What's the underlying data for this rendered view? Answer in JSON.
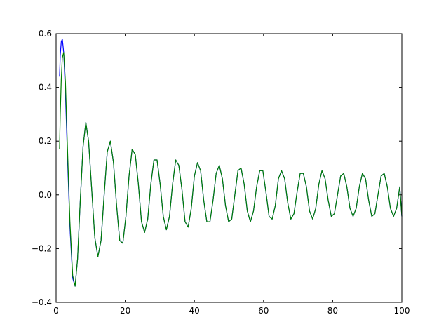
{
  "chart_data": {
    "type": "line",
    "title": "",
    "xlabel": "",
    "ylabel": "",
    "xlim": [
      0,
      100
    ],
    "ylim": [
      -0.4,
      0.6
    ],
    "grid": false,
    "x_ticks": [
      0,
      20,
      40,
      60,
      80,
      100
    ],
    "x_tick_labels": [
      "0",
      "20",
      "40",
      "60",
      "80",
      "100"
    ],
    "y_ticks": [
      -0.4,
      -0.2,
      0.0,
      0.2,
      0.4,
      0.6
    ],
    "y_tick_labels": [
      "−0.4",
      "−0.2",
      "0.0",
      "0.2",
      "0.4",
      "0.6"
    ],
    "series": [
      {
        "color": "#0000ff",
        "x": [
          1.0,
          1.2,
          1.5,
          1.8,
          2.2,
          2.7,
          3.3,
          4.0,
          4.8,
          5.5,
          6.2,
          7.0,
          7.8,
          8.6,
          9.4,
          10.3,
          11.2,
          12.1,
          13.0,
          13.9,
          14.8,
          15.7,
          16.6,
          17.5,
          18.4,
          19.3,
          20.2,
          21.1,
          22.0,
          22.9,
          23.8,
          24.7,
          25.6,
          26.5,
          27.4,
          28.3,
          29.2,
          30.1,
          31.0,
          31.9,
          32.8,
          33.7,
          34.6,
          35.5,
          36.4,
          37.3,
          38.2,
          39.1,
          40.0,
          40.9,
          41.8,
          42.7,
          43.6,
          44.5,
          45.4,
          46.3,
          47.2,
          48.1,
          49.0,
          49.9,
          50.8,
          51.7,
          52.6,
          53.5,
          54.4,
          55.3,
          56.2,
          57.1,
          58.0,
          58.9,
          59.8,
          60.7,
          61.6,
          62.5,
          63.4,
          64.3,
          65.2,
          66.1,
          67.0,
          67.9,
          68.8,
          69.7,
          70.6,
          71.5,
          72.4,
          73.3,
          74.2,
          75.1,
          76.0,
          76.9,
          77.8,
          78.7,
          79.6,
          80.5,
          81.4,
          82.3,
          83.2,
          84.1,
          85.0,
          85.9,
          86.8,
          87.7,
          88.6,
          89.5,
          90.4,
          91.3,
          92.2,
          93.1,
          94.0,
          94.9,
          95.8,
          96.7,
          97.6,
          98.5,
          99.4,
          100.0
        ],
        "y": [
          0.44,
          0.52,
          0.57,
          0.58,
          0.53,
          0.38,
          0.14,
          -0.12,
          -0.31,
          -0.34,
          -0.24,
          -0.02,
          0.18,
          0.27,
          0.2,
          0.02,
          -0.16,
          -0.23,
          -0.17,
          0.0,
          0.16,
          0.2,
          0.12,
          -0.04,
          -0.17,
          -0.18,
          -0.08,
          0.07,
          0.17,
          0.15,
          0.04,
          -0.1,
          -0.14,
          -0.09,
          0.04,
          0.13,
          0.13,
          0.04,
          -0.08,
          -0.13,
          -0.08,
          0.04,
          0.13,
          0.11,
          0.02,
          -0.1,
          -0.12,
          -0.05,
          0.07,
          0.12,
          0.09,
          -0.02,
          -0.1,
          -0.1,
          -0.02,
          0.08,
          0.11,
          0.06,
          -0.04,
          -0.1,
          -0.09,
          0.0,
          0.09,
          0.1,
          0.04,
          -0.06,
          -0.1,
          -0.06,
          0.03,
          0.09,
          0.09,
          0.01,
          -0.08,
          -0.09,
          -0.04,
          0.06,
          0.09,
          0.06,
          -0.03,
          -0.09,
          -0.07,
          0.01,
          0.08,
          0.08,
          0.03,
          -0.06,
          -0.09,
          -0.05,
          0.04,
          0.09,
          0.06,
          -0.02,
          -0.08,
          -0.07,
          0.0,
          0.07,
          0.08,
          0.03,
          -0.05,
          -0.08,
          -0.05,
          0.03,
          0.08,
          0.06,
          -0.02,
          -0.08,
          -0.07,
          0.0,
          0.07,
          0.08,
          0.03,
          -0.05,
          -0.08,
          -0.05,
          0.03,
          -0.08
        ]
      },
      {
        "color": "#007f00",
        "x": [
          1.0,
          1.2,
          1.5,
          1.8,
          2.2,
          2.7,
          3.3,
          4.0,
          4.8,
          5.5,
          6.2,
          7.0,
          7.8,
          8.6,
          9.4,
          10.3,
          11.2,
          12.1,
          13.0,
          13.9,
          14.8,
          15.7,
          16.6,
          17.5,
          18.4,
          19.3,
          20.2,
          21.1,
          22.0,
          22.9,
          23.8,
          24.7,
          25.6,
          26.5,
          27.4,
          28.3,
          29.2,
          30.1,
          31.0,
          31.9,
          32.8,
          33.7,
          34.6,
          35.5,
          36.4,
          37.3,
          38.2,
          39.1,
          40.0,
          40.9,
          41.8,
          42.7,
          43.6,
          44.5,
          45.4,
          46.3,
          47.2,
          48.1,
          49.0,
          49.9,
          50.8,
          51.7,
          52.6,
          53.5,
          54.4,
          55.3,
          56.2,
          57.1,
          58.0,
          58.9,
          59.8,
          60.7,
          61.6,
          62.5,
          63.4,
          64.3,
          65.2,
          66.1,
          67.0,
          67.9,
          68.8,
          69.7,
          70.6,
          71.5,
          72.4,
          73.3,
          74.2,
          75.1,
          76.0,
          76.9,
          77.8,
          78.7,
          79.6,
          80.5,
          81.4,
          82.3,
          83.2,
          84.1,
          85.0,
          85.9,
          86.8,
          87.7,
          88.6,
          89.5,
          90.4,
          91.3,
          92.2,
          93.1,
          94.0,
          94.9,
          95.8,
          96.7,
          97.6,
          98.5,
          99.4,
          100.0
        ],
        "y": [
          0.17,
          0.3,
          0.43,
          0.51,
          0.53,
          0.42,
          0.17,
          -0.1,
          -0.3,
          -0.34,
          -0.24,
          -0.02,
          0.18,
          0.27,
          0.2,
          0.02,
          -0.16,
          -0.23,
          -0.17,
          0.0,
          0.16,
          0.2,
          0.12,
          -0.04,
          -0.17,
          -0.18,
          -0.08,
          0.07,
          0.17,
          0.15,
          0.04,
          -0.1,
          -0.14,
          -0.09,
          0.04,
          0.13,
          0.13,
          0.04,
          -0.08,
          -0.13,
          -0.08,
          0.04,
          0.13,
          0.11,
          0.02,
          -0.1,
          -0.12,
          -0.05,
          0.07,
          0.12,
          0.09,
          -0.02,
          -0.1,
          -0.1,
          -0.02,
          0.08,
          0.11,
          0.06,
          -0.04,
          -0.1,
          -0.09,
          0.0,
          0.09,
          0.1,
          0.04,
          -0.06,
          -0.1,
          -0.06,
          0.03,
          0.09,
          0.09,
          0.01,
          -0.08,
          -0.09,
          -0.04,
          0.06,
          0.09,
          0.06,
          -0.03,
          -0.09,
          -0.07,
          0.01,
          0.08,
          0.08,
          0.03,
          -0.06,
          -0.09,
          -0.05,
          0.04,
          0.09,
          0.06,
          -0.02,
          -0.08,
          -0.07,
          0.0,
          0.07,
          0.08,
          0.03,
          -0.05,
          -0.08,
          -0.05,
          0.03,
          0.08,
          0.06,
          -0.02,
          -0.08,
          -0.07,
          0.0,
          0.07,
          0.08,
          0.03,
          -0.05,
          -0.08,
          -0.05,
          0.03,
          -0.08
        ]
      }
    ]
  }
}
